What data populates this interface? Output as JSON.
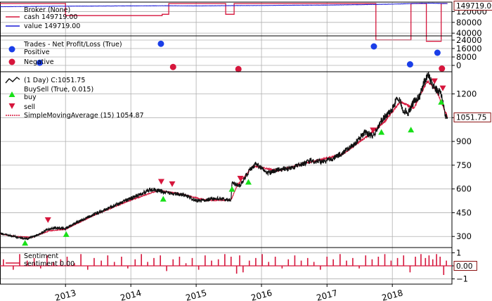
{
  "colors": {
    "cash": "#d6163c",
    "value": "#1a1ad6",
    "price": "#111111",
    "sma": "#d6163c",
    "buy": "#18e018",
    "sell": "#d6163c",
    "positive": "#1a3ee8",
    "negative": "#d6163c",
    "sentiment": "#d6163c",
    "grid": "#b0b0b0"
  },
  "chart_data": [
    {
      "type": "line",
      "panel": "broker",
      "legend_title": "Broker (None)",
      "series": [
        {
          "name": "cash",
          "label": "cash 149719.00",
          "x": [
            "2012-01-01",
            "2013-01-01",
            "2013-12-01",
            "2014-06-01",
            "2014-06-25",
            "2014-08-01",
            "2015-01-01",
            "2015-05-20",
            "2015-06-15",
            "2015-07-10",
            "2015-08-01",
            "2016-01-01",
            "2017-01-01",
            "2017-07-01",
            "2017-10-01",
            "2018-01-01",
            "2018-04-15",
            "2018-06-20",
            "2018-07-10",
            "2018-09-10",
            "2018-10-01",
            "2018-11-05"
          ],
          "y": [
            149719,
            105000,
            105000,
            105000,
            110000,
            149719,
            149719,
            149719,
            110000,
            110000,
            149719,
            149719,
            149719,
            149719,
            15000,
            15000,
            149719,
            149719,
            10000,
            10000,
            149719,
            149719
          ]
        },
        {
          "name": "value",
          "label": "value 149719.00",
          "x": [
            "2012-01-01",
            "2012-07-01",
            "2013-01-01",
            "2013-07-01",
            "2014-01-01",
            "2014-07-01",
            "2015-01-01",
            "2015-07-01",
            "2016-01-01",
            "2016-07-01",
            "2017-01-01",
            "2017-07-01",
            "2018-01-01",
            "2018-06-01",
            "2018-08-01",
            "2018-11-05"
          ],
          "y": [
            138000,
            139000,
            140000,
            140500,
            141000,
            141500,
            141000,
            142000,
            142500,
            143500,
            144000,
            145500,
            147500,
            150500,
            151000,
            149719
          ]
        }
      ],
      "y_ticks": [
        40000,
        80000,
        120000
      ],
      "ylim": [
        30000,
        155000
      ],
      "last_value_label": "149719.00"
    },
    {
      "type": "scatter",
      "panel": "trades",
      "legend_title": "Trades - Net Profit/Loss (True)",
      "series": [
        {
          "name": "Positive",
          "points": [
            [
              "2012-08-10",
              2500
            ],
            [
              "2014-06-18",
              20500
            ],
            [
              "2017-09-20",
              18000
            ],
            [
              "2018-04-10",
              1000
            ],
            [
              "2018-09-10",
              12000
            ]
          ]
        },
        {
          "name": "Negative",
          "points": [
            [
              "2014-08-25",
              -1500
            ],
            [
              "2015-08-25",
              -3500
            ],
            [
              "2018-10-05",
              -3000
            ]
          ]
        }
      ],
      "y_ticks": [
        0,
        8000,
        16000,
        24000
      ],
      "ylim": [
        -6000,
        28000
      ]
    },
    {
      "type": "line",
      "panel": "price",
      "legend_title": "(1 Day) C:1051.75",
      "buysell_label": "BuySell (True, 0.015)",
      "buy_label": "buy",
      "sell_label": "sell",
      "sma_label": "SimpleMovingAverage (15) 1054.87",
      "series": [
        {
          "name": "close",
          "x": [
            "2012-01-01",
            "2012-03-01",
            "2012-05-01",
            "2012-06-01",
            "2012-08-01",
            "2012-09-15",
            "2012-11-01",
            "2013-01-01",
            "2013-03-01",
            "2013-05-01",
            "2013-07-01",
            "2013-09-01",
            "2013-11-01",
            "2014-01-01",
            "2014-03-01",
            "2014-05-01",
            "2014-07-01",
            "2014-09-01",
            "2014-11-01",
            "2015-01-01",
            "2015-03-01",
            "2015-05-01",
            "2015-07-15",
            "2015-07-20",
            "2015-09-01",
            "2015-10-15",
            "2015-12-01",
            "2016-02-01",
            "2016-04-01",
            "2016-06-01",
            "2016-08-01",
            "2016-10-01",
            "2016-12-01",
            "2017-02-01",
            "2017-04-01",
            "2017-06-01",
            "2017-08-01",
            "2017-09-15",
            "2017-10-15",
            "2017-11-01",
            "2018-01-01",
            "2018-02-01",
            "2018-03-01",
            "2018-04-01",
            "2018-05-01",
            "2018-06-01",
            "2018-07-01",
            "2018-07-20",
            "2018-08-20",
            "2018-10-01",
            "2018-10-25",
            "2018-11-05"
          ],
          "y": [
            320,
            305,
            290,
            285,
            310,
            340,
            355,
            350,
            385,
            420,
            450,
            480,
            510,
            540,
            570,
            600,
            580,
            570,
            560,
            525,
            530,
            540,
            530,
            640,
            620,
            700,
            760,
            700,
            720,
            730,
            750,
            780,
            770,
            790,
            830,
            880,
            960,
            930,
            990,
            1030,
            1110,
            1180,
            1100,
            1080,
            1150,
            1180,
            1280,
            1320,
            1240,
            1200,
            1050,
            1051.75
          ]
        },
        {
          "name": "SimpleMovingAverage (15)",
          "x": [
            "2012-01-01",
            "2012-04-01",
            "2012-07-01",
            "2012-10-01",
            "2013-01-01",
            "2013-06-01",
            "2014-01-01",
            "2014-06-01",
            "2014-10-01",
            "2015-03-01",
            "2015-07-15",
            "2015-08-20",
            "2015-11-15",
            "2016-04-01",
            "2016-10-01",
            "2017-04-01",
            "2017-08-15",
            "2017-11-15",
            "2018-02-15",
            "2018-05-01",
            "2018-07-15",
            "2018-09-01",
            "2018-11-05"
          ],
          "y": [
            315,
            300,
            295,
            335,
            345,
            430,
            530,
            590,
            570,
            528,
            530,
            625,
            745,
            715,
            770,
            820,
            935,
            1020,
            1150,
            1110,
            1280,
            1230,
            1054.87
          ]
        }
      ],
      "buys": [
        [
          "2012-05-20",
          300
        ],
        [
          "2013-01-05",
          355
        ],
        [
          "2014-07-01",
          578
        ],
        [
          "2015-07-20",
          640
        ],
        [
          "2015-10-20",
          685
        ],
        [
          "2017-11-01",
          1000
        ],
        [
          "2018-04-15",
          1015
        ],
        [
          "2018-10-01",
          1190
        ]
      ],
      "sells": [
        [
          "2012-09-25",
          363
        ],
        [
          "2014-06-20",
          605
        ],
        [
          "2014-08-20",
          590
        ],
        [
          "2015-09-05",
          625
        ],
        [
          "2017-09-15",
          930
        ],
        [
          "2018-08-25",
          1240
        ],
        [
          "2018-10-10",
          1195
        ]
      ],
      "y_ticks": [
        300,
        450,
        600,
        750,
        900,
        1050,
        1200
      ],
      "ylim": [
        230,
        1340
      ],
      "last_value_label": "1051.75"
    },
    {
      "type": "bar",
      "panel": "sentiment",
      "legend_title": "Sentiment",
      "series_label": "sentiment 0.00",
      "y_ticks": [
        -1,
        0,
        1
      ],
      "ylim": [
        -1.4,
        1.4
      ],
      "last_value_label": "0.00",
      "x": [
        "2012-01-20",
        "2012-03-15",
        "2012-04-20",
        "2012-06-01",
        "2012-07-10",
        "2012-08-15",
        "2012-09-20",
        "2012-10-25",
        "2012-12-05",
        "2013-01-10",
        "2013-02-20",
        "2013-03-28",
        "2013-05-05",
        "2013-06-10",
        "2013-07-20",
        "2013-08-25",
        "2013-10-01",
        "2013-11-10",
        "2013-12-15",
        "2014-01-25",
        "2014-03-01",
        "2014-04-05",
        "2014-05-10",
        "2014-06-15",
        "2014-07-20",
        "2014-08-25",
        "2014-09-30",
        "2014-11-05",
        "2014-12-10",
        "2015-01-15",
        "2015-02-20",
        "2015-03-28",
        "2015-05-05",
        "2015-06-10",
        "2015-07-15",
        "2015-08-15",
        "2015-09-01",
        "2015-09-20",
        "2015-10-25",
        "2015-11-30",
        "2016-01-05",
        "2016-02-10",
        "2016-03-18",
        "2016-04-25",
        "2016-05-30",
        "2016-07-05",
        "2016-08-10",
        "2016-09-15",
        "2016-10-20",
        "2016-11-25",
        "2017-01-01",
        "2017-02-05",
        "2017-03-15",
        "2017-04-20",
        "2017-05-25",
        "2017-06-30",
        "2017-08-05",
        "2017-09-10",
        "2017-10-15",
        "2017-11-20",
        "2017-12-25",
        "2018-01-30",
        "2018-03-05",
        "2018-04-10",
        "2018-05-10",
        "2018-06-10",
        "2018-07-05",
        "2018-07-25",
        "2018-08-15",
        "2018-09-05",
        "2018-09-25",
        "2018-10-15",
        "2018-10-30"
      ],
      "values": [
        0.5,
        -0.3,
        0.9,
        0.4,
        0.6,
        -0.2,
        0.8,
        0.3,
        0.5,
        0.7,
        0.2,
        0.9,
        -0.3,
        0.6,
        0.4,
        0.8,
        0.3,
        0.7,
        -0.2,
        0.5,
        0.9,
        0.3,
        0.6,
        0.8,
        -0.4,
        0.5,
        0.7,
        0.2,
        0.6,
        -0.3,
        0.8,
        0.4,
        0.5,
        0.9,
        0.7,
        -0.6,
        0.8,
        -0.5,
        0.4,
        0.6,
        0.9,
        0.3,
        0.7,
        -0.2,
        0.5,
        0.8,
        0.4,
        0.6,
        0.3,
        -0.3,
        0.7,
        0.5,
        0.9,
        0.4,
        0.6,
        -0.2,
        0.8,
        0.5,
        0.7,
        0.9,
        0.4,
        0.6,
        0.8,
        -0.5,
        0.7,
        0.9,
        0.6,
        0.8,
        0.5,
        0.9,
        0.7,
        -0.7,
        0.4
      ]
    }
  ],
  "x_axis": {
    "ticks": [
      "2013-01-01",
      "2014-01-01",
      "2015-01-01",
      "2016-01-01",
      "2017-01-01",
      "2018-01-01"
    ],
    "tick_labels": [
      "2013",
      "2014",
      "2015",
      "2016",
      "2017",
      "2018"
    ],
    "range": [
      "2012-01-01",
      "2018-11-30"
    ]
  }
}
